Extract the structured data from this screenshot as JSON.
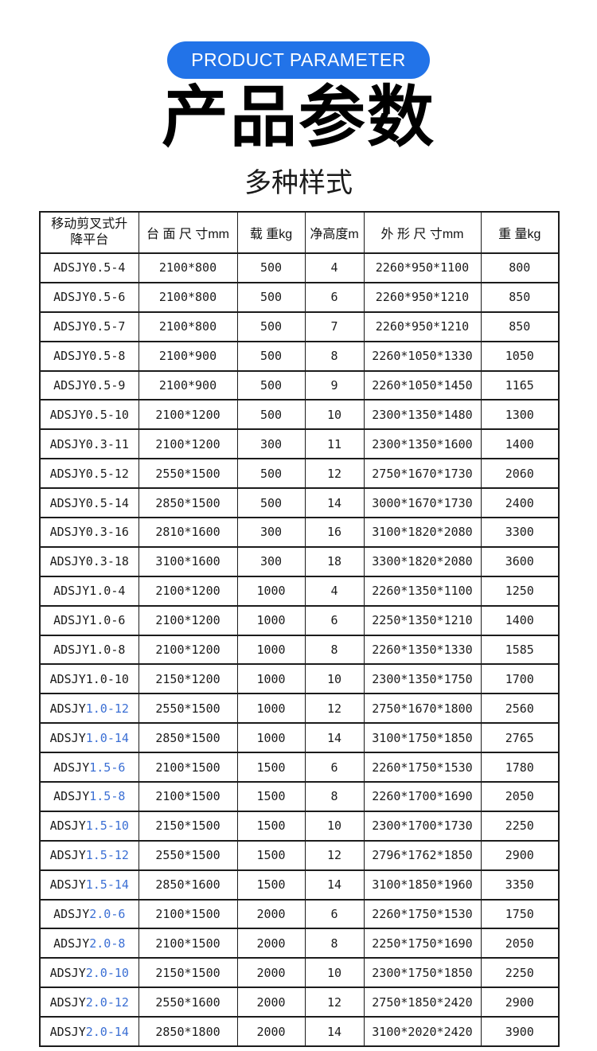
{
  "badge": {
    "label": "PRODUCT PARAMETER",
    "bg_color": "#2273e8",
    "text_color": "#ffffff"
  },
  "title": "产品参数",
  "subtitle": "多种样式",
  "table": {
    "accent_color": "#3b6fd4",
    "headers": [
      "移动剪叉式升降平台",
      "台 面 尺 寸mm",
      "载 重kg",
      "净高度m",
      "外 形 尺 寸mm",
      "重 量kg"
    ],
    "rows": [
      {
        "model_prefix": "ADSJY",
        "model_suffix": "0.5-4",
        "accent": false,
        "cells": [
          "2100*800",
          "500",
          "4",
          "2260*950*1100",
          "800"
        ]
      },
      {
        "model_prefix": "ADSJY",
        "model_suffix": "0.5-6",
        "accent": false,
        "cells": [
          "2100*800",
          "500",
          "6",
          "2260*950*1210",
          "850"
        ]
      },
      {
        "model_prefix": "ADSJY",
        "model_suffix": "0.5-7",
        "accent": false,
        "cells": [
          "2100*800",
          "500",
          "7",
          "2260*950*1210",
          "850"
        ]
      },
      {
        "model_prefix": "ADSJY",
        "model_suffix": "0.5-8",
        "accent": false,
        "cells": [
          "2100*900",
          "500",
          "8",
          "2260*1050*1330",
          "1050"
        ]
      },
      {
        "model_prefix": "ADSJY",
        "model_suffix": "0.5-9",
        "accent": false,
        "cells": [
          "2100*900",
          "500",
          "9",
          "2260*1050*1450",
          "1165"
        ]
      },
      {
        "model_prefix": "ADSJY",
        "model_suffix": "0.5-10",
        "accent": false,
        "cells": [
          "2100*1200",
          "500",
          "10",
          "2300*1350*1480",
          "1300"
        ]
      },
      {
        "model_prefix": "ADSJY",
        "model_suffix": "0.3-11",
        "accent": false,
        "cells": [
          "2100*1200",
          "300",
          "11",
          "2300*1350*1600",
          "1400"
        ]
      },
      {
        "model_prefix": "ADSJY",
        "model_suffix": "0.5-12",
        "accent": false,
        "cells": [
          "2550*1500",
          "500",
          "12",
          "2750*1670*1730",
          "2060"
        ]
      },
      {
        "model_prefix": "ADSJY",
        "model_suffix": "0.5-14",
        "accent": false,
        "cells": [
          "2850*1500",
          "500",
          "14",
          "3000*1670*1730",
          "2400"
        ]
      },
      {
        "model_prefix": "ADSJY",
        "model_suffix": "0.3-16",
        "accent": false,
        "cells": [
          "2810*1600",
          "300",
          "16",
          "3100*1820*2080",
          "3300"
        ]
      },
      {
        "model_prefix": "ADSJY",
        "model_suffix": "0.3-18",
        "accent": false,
        "cells": [
          "3100*1600",
          "300",
          "18",
          "3300*1820*2080",
          "3600"
        ]
      },
      {
        "model_prefix": "ADSJY",
        "model_suffix": "1.0-4",
        "accent": false,
        "cells": [
          "2100*1200",
          "1000",
          "4",
          "2260*1350*1100",
          "1250"
        ]
      },
      {
        "model_prefix": "ADSJY",
        "model_suffix": "1.0-6",
        "accent": false,
        "cells": [
          "2100*1200",
          "1000",
          "6",
          "2250*1350*1210",
          "1400"
        ]
      },
      {
        "model_prefix": "ADSJY",
        "model_suffix": "1.0-8",
        "accent": false,
        "cells": [
          "2100*1200",
          "1000",
          "8",
          "2260*1350*1330",
          "1585"
        ]
      },
      {
        "model_prefix": "ADSJY",
        "model_suffix": "1.0-10",
        "accent": false,
        "cells": [
          "2150*1200",
          "1000",
          "10",
          "2300*1350*1750",
          "1700"
        ]
      },
      {
        "model_prefix": "ADSJY",
        "model_suffix": "1.0-12",
        "accent": true,
        "cells": [
          "2550*1500",
          "1000",
          "12",
          "2750*1670*1800",
          "2560"
        ]
      },
      {
        "model_prefix": "ADSJY",
        "model_suffix": "1.0-14",
        "accent": true,
        "cells": [
          "2850*1500",
          "1000",
          "14",
          "3100*1750*1850",
          "2765"
        ]
      },
      {
        "model_prefix": "ADSJY",
        "model_suffix": "1.5-6",
        "accent": true,
        "cells": [
          "2100*1500",
          "1500",
          "6",
          "2260*1750*1530",
          "1780"
        ]
      },
      {
        "model_prefix": "ADSJY",
        "model_suffix": "1.5-8",
        "accent": true,
        "cells": [
          "2100*1500",
          "1500",
          "8",
          "2260*1700*1690",
          "2050"
        ]
      },
      {
        "model_prefix": "ADSJY",
        "model_suffix": "1.5-10",
        "accent": true,
        "cells": [
          "2150*1500",
          "1500",
          "10",
          "2300*1700*1730",
          "2250"
        ]
      },
      {
        "model_prefix": "ADSJY",
        "model_suffix": "1.5-12",
        "accent": true,
        "cells": [
          "2550*1500",
          "1500",
          "12",
          "2796*1762*1850",
          "2900"
        ]
      },
      {
        "model_prefix": "ADSJY",
        "model_suffix": "1.5-14",
        "accent": true,
        "cells": [
          "2850*1600",
          "1500",
          "14",
          "3100*1850*1960",
          "3350"
        ]
      },
      {
        "model_prefix": "ADSJY",
        "model_suffix": "2.0-6",
        "accent": true,
        "cells": [
          "2100*1500",
          "2000",
          "6",
          "2260*1750*1530",
          "1750"
        ]
      },
      {
        "model_prefix": "ADSJY",
        "model_suffix": "2.0-8",
        "accent": true,
        "cells": [
          "2100*1500",
          "2000",
          "8",
          "2250*1750*1690",
          "2050"
        ]
      },
      {
        "model_prefix": "ADSJY",
        "model_suffix": "2.0-10",
        "accent": true,
        "cells": [
          "2150*1500",
          "2000",
          "10",
          "2300*1750*1850",
          "2250"
        ]
      },
      {
        "model_prefix": "ADSJY",
        "model_suffix": "2.0-12",
        "accent": true,
        "cells": [
          "2550*1600",
          "2000",
          "12",
          "2750*1850*2420",
          "2900"
        ]
      },
      {
        "model_prefix": "ADSJY",
        "model_suffix": "2.0-14",
        "accent": true,
        "cells": [
          "2850*1800",
          "2000",
          "14",
          "3100*2020*2420",
          "3900"
        ]
      }
    ]
  }
}
